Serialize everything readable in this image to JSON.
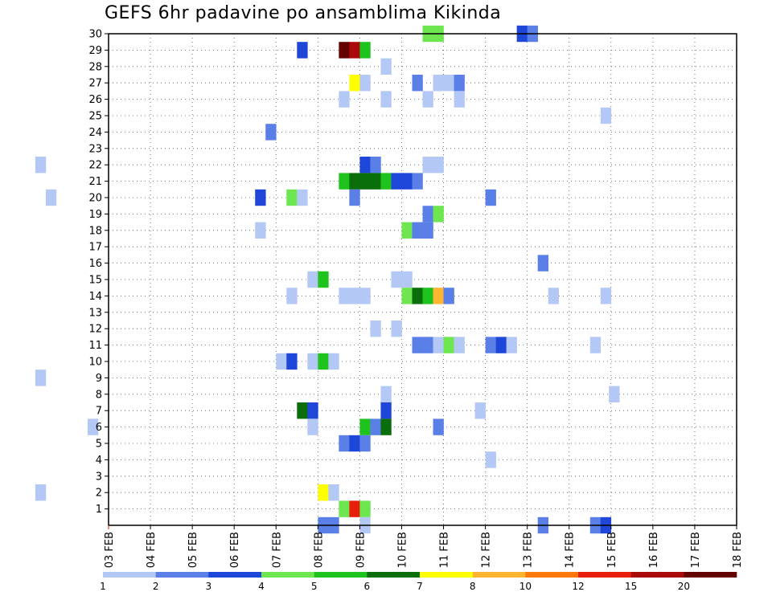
{
  "chart_data": {
    "type": "heatmap",
    "title": "GEFS 6hr padavine po ansamblima Kikinda",
    "x_tick_labels": [
      "03 FEB",
      "04 FEB",
      "05 FEB",
      "06 FEB",
      "07 FEB",
      "08 FEB",
      "09 FEB",
      "10 FEB",
      "11 FEB",
      "12 FEB",
      "13 FEB",
      "14 FEB",
      "15 FEB",
      "16 FEB",
      "17 FEB",
      "18 FEB"
    ],
    "xlim_days": [
      3,
      18
    ],
    "steps_per_day": 4,
    "y_tick_labels": [
      "1",
      "2",
      "3",
      "4",
      "5",
      "6",
      "7",
      "8",
      "9",
      "10",
      "11",
      "12",
      "13",
      "14",
      "15",
      "16",
      "17",
      "18",
      "19",
      "20",
      "21",
      "22",
      "23",
      "24",
      "25",
      "26",
      "27",
      "28",
      "29",
      "30"
    ],
    "ylim": [
      0,
      30
    ],
    "grid": true,
    "colorbar": {
      "position": "bottom",
      "tick_labels": [
        "1",
        "2",
        "3",
        "4",
        "5",
        "6",
        "7",
        "8",
        "10",
        "12",
        "15",
        "20"
      ],
      "colors": [
        "#b4c8f5",
        "#5a80e8",
        "#1e46d8",
        "#6ee650",
        "#1ec31e",
        "#0a6e0a",
        "#ffff00",
        "#ffb432",
        "#ff780a",
        "#e61e0a",
        "#aa0a0a",
        "#640000"
      ]
    },
    "cells": [
      {
        "m": 30,
        "t": [
          [
            10.5,
            4
          ],
          [
            10.75,
            4
          ],
          [
            12.75,
            3
          ],
          [
            13,
            2
          ]
        ]
      },
      {
        "m": 29,
        "t": [
          [
            7.5,
            3
          ],
          [
            8.5,
            12
          ],
          [
            8.75,
            11
          ],
          [
            9,
            5
          ]
        ]
      },
      {
        "m": 28,
        "t": [
          [
            9.5,
            1
          ]
        ]
      },
      {
        "m": 27,
        "t": [
          [
            8.75,
            7
          ],
          [
            9,
            1
          ],
          [
            10.25,
            2
          ],
          [
            10.75,
            1
          ],
          [
            11,
            1
          ],
          [
            11.25,
            2
          ]
        ]
      },
      {
        "m": 26,
        "t": [
          [
            8.5,
            1
          ],
          [
            9.5,
            1
          ],
          [
            10.5,
            1
          ],
          [
            11.25,
            1
          ]
        ]
      },
      {
        "m": 25,
        "t": [
          [
            14.75,
            1
          ]
        ]
      },
      {
        "m": 24,
        "t": [
          [
            6.75,
            2
          ]
        ]
      },
      {
        "m": 22,
        "t": [
          [
            1.25,
            1
          ],
          [
            9,
            3
          ],
          [
            9.25,
            2
          ],
          [
            10.5,
            1
          ],
          [
            10.75,
            1
          ]
        ]
      },
      {
        "m": 21,
        "t": [
          [
            8.5,
            5
          ],
          [
            8.75,
            6
          ],
          [
            9,
            6
          ],
          [
            9.25,
            6
          ],
          [
            9.5,
            5
          ],
          [
            9.75,
            3
          ],
          [
            10,
            3
          ],
          [
            10.25,
            2
          ]
        ]
      },
      {
        "m": 20,
        "t": [
          [
            1.5,
            1
          ],
          [
            6.5,
            3
          ],
          [
            7.25,
            4
          ],
          [
            7.5,
            1
          ],
          [
            8.75,
            2
          ],
          [
            12,
            2
          ]
        ]
      },
      {
        "m": 19,
        "t": [
          [
            10.5,
            2
          ],
          [
            10.75,
            4
          ]
        ]
      },
      {
        "m": 18,
        "t": [
          [
            6.5,
            1
          ],
          [
            10,
            4
          ],
          [
            10.25,
            2
          ],
          [
            10.5,
            2
          ]
        ]
      },
      {
        "m": 16,
        "t": [
          [
            13.25,
            2
          ]
        ]
      },
      {
        "m": 15,
        "t": [
          [
            7.75,
            1
          ],
          [
            8,
            5
          ],
          [
            9.75,
            1
          ],
          [
            10,
            1
          ]
        ]
      },
      {
        "m": 14,
        "t": [
          [
            7.25,
            1
          ],
          [
            8.5,
            1
          ],
          [
            8.75,
            1
          ],
          [
            9,
            1
          ],
          [
            10,
            4
          ],
          [
            10.25,
            6
          ],
          [
            10.5,
            5
          ],
          [
            10.75,
            8
          ],
          [
            11,
            2
          ],
          [
            13.5,
            1
          ],
          [
            14.75,
            1
          ]
        ]
      },
      {
        "m": 12,
        "t": [
          [
            9.25,
            1
          ],
          [
            9.75,
            1
          ]
        ]
      },
      {
        "m": 11,
        "t": [
          [
            10.25,
            2
          ],
          [
            10.5,
            2
          ],
          [
            10.75,
            1
          ],
          [
            11,
            4
          ],
          [
            11.25,
            1
          ],
          [
            12,
            2
          ],
          [
            12.25,
            3
          ],
          [
            12.5,
            1
          ],
          [
            14.5,
            1
          ]
        ]
      },
      {
        "m": 10,
        "t": [
          [
            7,
            1
          ],
          [
            7.25,
            3
          ],
          [
            7.75,
            1
          ],
          [
            8,
            5
          ],
          [
            8.25,
            1
          ]
        ]
      },
      {
        "m": 9,
        "t": [
          [
            1.25,
            1
          ]
        ]
      },
      {
        "m": 8,
        "t": [
          [
            9.5,
            1
          ],
          [
            14.95,
            1
          ]
        ]
      },
      {
        "m": 7,
        "t": [
          [
            7.5,
            6
          ],
          [
            7.75,
            3
          ],
          [
            9.5,
            3
          ],
          [
            11.75,
            1
          ]
        ]
      },
      {
        "m": 6,
        "t": [
          [
            2.5,
            1
          ],
          [
            7.75,
            1
          ],
          [
            9,
            5
          ],
          [
            9.25,
            2
          ],
          [
            9.5,
            6
          ],
          [
            10.75,
            2
          ]
        ]
      },
      {
        "m": 5,
        "t": [
          [
            8.5,
            2
          ],
          [
            8.75,
            3
          ],
          [
            9,
            2
          ]
        ]
      },
      {
        "m": 4,
        "t": [
          [
            12,
            1
          ]
        ]
      },
      {
        "m": 2,
        "t": [
          [
            1.25,
            1
          ],
          [
            8,
            7
          ],
          [
            8.25,
            1
          ]
        ]
      },
      {
        "m": 1,
        "t": [
          [
            8.5,
            4
          ],
          [
            8.75,
            10
          ],
          [
            9,
            4
          ]
        ]
      },
      {
        "m": 0,
        "t": [
          [
            8,
            2
          ],
          [
            8.25,
            2
          ],
          [
            9,
            1
          ],
          [
            13.25,
            2
          ],
          [
            14.5,
            2
          ],
          [
            14.75,
            3
          ]
        ]
      }
    ]
  }
}
